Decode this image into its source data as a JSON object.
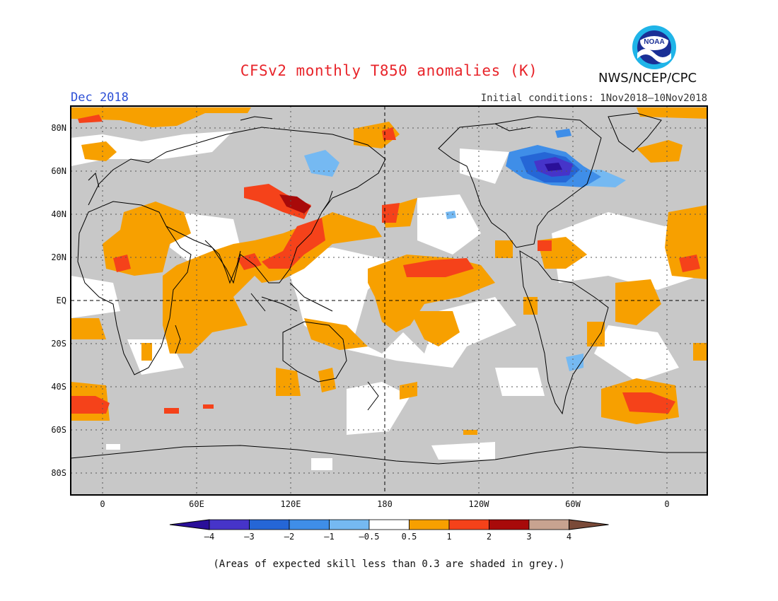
{
  "title": "CFSv2 monthly T850 anomalies (K)",
  "forecast_month": "Dec 2018",
  "initial_conditions": "Initial conditions: 1Nov2018–10Nov2018",
  "agency": "NWS/NCEP/CPC",
  "logo_text": "NOAA",
  "footnote": "(Areas of expected skill less than 0.3 are shaded in grey.)",
  "axes": {
    "lat_labels": [
      "80N",
      "60N",
      "40N",
      "20N",
      "EQ",
      "20S",
      "40S",
      "60S",
      "80S"
    ],
    "lon_labels": [
      "0",
      "60E",
      "120E",
      "180",
      "120W",
      "60W",
      "0"
    ]
  },
  "colorbar": {
    "labels": [
      "–4",
      "–3",
      "–2",
      "–1",
      "–0.5",
      "0.5",
      "1",
      "2",
      "3",
      "4"
    ],
    "colors": [
      "#2a0f99",
      "#4634c9",
      "#2566d6",
      "#3f8ee8",
      "#75b9f2",
      "#ffffff",
      "#f7a000",
      "#f5421a",
      "#a80a0a",
      "#c8a390",
      "#7a4a38"
    ]
  },
  "colors": {
    "skill_grey": "#c8c8c8",
    "warm1": "#f7a000",
    "warm2": "#f5421a",
    "warm3": "#a80a0a",
    "cool1": "#75b9f2",
    "cool2": "#3f8ee8",
    "cool3": "#2566d6",
    "cool4": "#4634c9",
    "cool5": "#2a0f99"
  }
}
